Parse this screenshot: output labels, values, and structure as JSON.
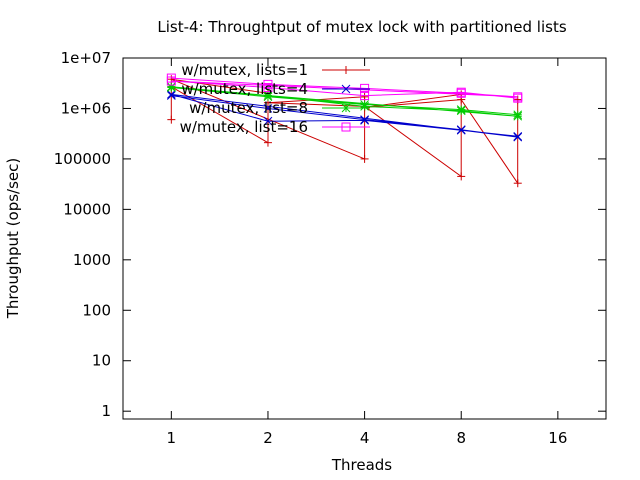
{
  "chart_data": {
    "type": "line",
    "title": "List-4: Throughtput of mutex lock with partitioned lists",
    "xlabel": "Threads",
    "ylabel": "Throughput (ops/sec)",
    "x_scale": "log2",
    "y_scale": "log10",
    "xlim": [
      0.707,
      22.6
    ],
    "ylim": [
      0.7,
      10000000
    ],
    "x_ticks": [
      1,
      2,
      4,
      8,
      16
    ],
    "x_tick_labels": [
      "1",
      "2",
      "4",
      "8",
      "16"
    ],
    "y_ticks": [
      1,
      10,
      100,
      1000,
      10000,
      100000,
      1000000,
      10000000
    ],
    "y_tick_labels": [
      "1",
      "10",
      "100",
      "1000",
      "10000",
      "100000",
      "1e+06",
      "1e+07"
    ],
    "grid": false,
    "legend_position": "top-left",
    "series": [
      {
        "name": "w/mutex, lists=1",
        "color": "#cc0000",
        "marker": "plus",
        "points": [
          [
            1,
            600000
          ],
          [
            1,
            2700000
          ],
          [
            2,
            210000
          ],
          [
            2,
            2000000
          ],
          [
            1,
            3800000
          ],
          [
            4,
            100000
          ],
          [
            4,
            1700000
          ],
          [
            2,
            1300000
          ],
          [
            4,
            1100000
          ],
          [
            8,
            45000
          ],
          [
            8,
            1900000
          ],
          [
            4,
            1050000
          ],
          [
            8,
            1500000
          ],
          [
            12,
            33000
          ],
          [
            12,
            1500000
          ]
        ]
      },
      {
        "name": "w/mutex, lists=4",
        "color": "#0000cc",
        "marker": "cross",
        "points": [
          [
            1,
            1800000
          ],
          [
            2,
            1000000
          ],
          [
            4,
            600000
          ],
          [
            8,
            380000
          ],
          [
            12,
            270000
          ],
          [
            1,
            1900000
          ],
          [
            2,
            560000
          ],
          [
            4,
            580000
          ],
          [
            8,
            370000
          ],
          [
            12,
            280000
          ]
        ]
      },
      {
        "name": "w/mutex, list=8",
        "color": "#00cc00",
        "marker": "star",
        "points": [
          [
            1,
            2700000
          ],
          [
            2,
            1800000
          ],
          [
            4,
            1100000
          ],
          [
            8,
            900000
          ],
          [
            12,
            700000
          ],
          [
            1,
            2600000
          ],
          [
            2,
            1700000
          ],
          [
            4,
            1200000
          ],
          [
            8,
            950000
          ],
          [
            12,
            750000
          ]
        ]
      },
      {
        "name": "w/mutex, list=16",
        "color": "#ff00ff",
        "marker": "square",
        "points": [
          [
            1,
            4000000
          ],
          [
            2,
            3000000
          ],
          [
            4,
            2500000
          ],
          [
            8,
            2000000
          ],
          [
            12,
            1700000
          ],
          [
            1,
            3500000
          ],
          [
            2,
            2600000
          ],
          [
            4,
            1800000
          ],
          [
            8,
            2100000
          ],
          [
            12,
            1600000
          ]
        ]
      }
    ]
  }
}
